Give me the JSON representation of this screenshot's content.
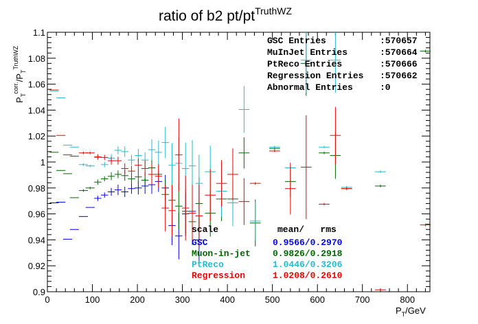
{
  "chart_data": {
    "type": "scatter",
    "title": "ratio of b2 pt/pt",
    "title_superscript": "TruthWZ",
    "xlabel": "P",
    "xlabel_sub": "T",
    "xlabel_unit": "/GeV",
    "ylabel": {
      "p1": "P",
      "p1_sub": "T",
      "p1_sup": "corr.",
      "slash": "/P",
      "p2_sub": "T",
      "p2_sup": "TruthWZ"
    },
    "xlim": [
      0,
      850
    ],
    "ylim": [
      0.9,
      1.1
    ],
    "x_ticks": [
      0,
      100,
      200,
      300,
      400,
      500,
      600,
      700,
      800
    ],
    "y_ticks": [
      0.9,
      0.92,
      0.94,
      0.96,
      0.98,
      1.0,
      1.02,
      1.04,
      1.06,
      1.08,
      1.1
    ],
    "x_tick_labels": [
      "0",
      "100",
      "200",
      "300",
      "400",
      "500",
      "600",
      "700",
      "800"
    ],
    "y_tick_labels": [
      "0.9",
      "0.92",
      "0.94",
      "0.96",
      "0.98",
      "1",
      "1.02",
      "1.04",
      "1.06",
      "1.08",
      "1.1"
    ],
    "grid": false,
    "stats_box": {
      "rows": [
        {
          "label": "GSC Entries",
          "value": ":570657"
        },
        {
          "label": "MuInJet Entries",
          "value": ":570664"
        },
        {
          "label": "PtReco Entries",
          "value": ":570666"
        },
        {
          "label": "Regression Entries",
          "value": ":570662"
        },
        {
          "label": "Abnormal Entries",
          "value": ":0"
        }
      ]
    },
    "legend": {
      "header_left": "scale",
      "header_right": "mean/   rms",
      "placement": "bottom-center",
      "entries": [
        {
          "name": "GSC",
          "value": "0.9566/0.2970",
          "color": "#0000ee"
        },
        {
          "name": "Muon-in-jet",
          "value": "0.9826/0.2918",
          "color": "#006600"
        },
        {
          "name": "PtReco",
          "value": "1.0446/0.3206",
          "color": "#22bbcc"
        },
        {
          "name": "Regression",
          "value": "1.0208/0.2610",
          "color": "#ee0000"
        }
      ]
    },
    "series": [
      {
        "name": "GSC",
        "color": "#0000ee",
        "points": [
          {
            "x": 15,
            "xerr": 10,
            "y": 0.9685,
            "yerr": 0
          },
          {
            "x": 30,
            "xerr": 10,
            "y": 0.969,
            "yerr": 0
          },
          {
            "x": 45,
            "xerr": 10,
            "y": 0.9405,
            "yerr": 0
          },
          {
            "x": 60,
            "xerr": 10,
            "y": 0.948,
            "yerr": 0
          },
          {
            "x": 80,
            "xerr": 10,
            "y": 0.958,
            "yerr": 0
          },
          {
            "x": 95,
            "xerr": 10,
            "y": 0.965,
            "yerr": 0
          },
          {
            "x": 112,
            "xerr": 8,
            "y": 0.972,
            "yerr": 0.002
          },
          {
            "x": 127,
            "xerr": 8,
            "y": 0.9745,
            "yerr": 0.002
          },
          {
            "x": 142,
            "xerr": 8,
            "y": 0.977,
            "yerr": 0.003
          },
          {
            "x": 157,
            "xerr": 8,
            "y": 0.9785,
            "yerr": 0.004
          },
          {
            "x": 172,
            "xerr": 8,
            "y": 0.977,
            "yerr": 0.004
          },
          {
            "x": 187,
            "xerr": 8,
            "y": 0.9795,
            "yerr": 0.004
          },
          {
            "x": 202,
            "xerr": 8,
            "y": 0.98,
            "yerr": 0.005
          },
          {
            "x": 217,
            "xerr": 8,
            "y": 0.9815,
            "yerr": 0.006
          },
          {
            "x": 232,
            "xerr": 8,
            "y": 0.9825,
            "yerr": 0.007
          },
          {
            "x": 247,
            "xerr": 8,
            "y": 0.985,
            "yerr": 0.008
          },
          {
            "x": 262,
            "xerr": 8,
            "y": 0.98,
            "yerr": 0.01
          },
          {
            "x": 277,
            "xerr": 8,
            "y": 0.951,
            "yerr": 0.015
          },
          {
            "x": 292,
            "xerr": 8,
            "y": 0.943,
            "yerr": 0.018
          },
          {
            "x": 307,
            "xerr": 8,
            "y": 0.96,
            "yerr": 0.017
          },
          {
            "x": 322,
            "xerr": 8,
            "y": 0.962,
            "yerr": 0.019
          },
          {
            "x": 337,
            "xerr": 8,
            "y": 0.94,
            "yerr": 0.017
          }
        ]
      },
      {
        "name": "Muon-in-jet",
        "color": "#006600",
        "points": [
          {
            "x": 15,
            "xerr": 10,
            "y": 1.0075,
            "yerr": 0
          },
          {
            "x": 30,
            "xerr": 10,
            "y": 0.9935,
            "yerr": 0
          },
          {
            "x": 45,
            "xerr": 10,
            "y": 0.991,
            "yerr": 0
          },
          {
            "x": 60,
            "xerr": 10,
            "y": 0.9725,
            "yerr": 0
          },
          {
            "x": 80,
            "xerr": 10,
            "y": 0.978,
            "yerr": 0.001
          },
          {
            "x": 95,
            "xerr": 10,
            "y": 0.98,
            "yerr": 0.001
          },
          {
            "x": 112,
            "xerr": 8,
            "y": 0.9845,
            "yerr": 0.002
          },
          {
            "x": 127,
            "xerr": 8,
            "y": 0.987,
            "yerr": 0.002
          },
          {
            "x": 142,
            "xerr": 8,
            "y": 0.989,
            "yerr": 0.003
          },
          {
            "x": 157,
            "xerr": 8,
            "y": 0.9905,
            "yerr": 0.003
          },
          {
            "x": 172,
            "xerr": 8,
            "y": 0.9895,
            "yerr": 0.004
          },
          {
            "x": 187,
            "xerr": 8,
            "y": 0.987,
            "yerr": 0.004
          },
          {
            "x": 202,
            "xerr": 8,
            "y": 0.9885,
            "yerr": 0.005
          },
          {
            "x": 217,
            "xerr": 8,
            "y": 0.986,
            "yerr": 0.006
          },
          {
            "x": 232,
            "xerr": 8,
            "y": 0.9955,
            "yerr": 0.007
          },
          {
            "x": 247,
            "xerr": 8,
            "y": 0.9905,
            "yerr": 0.008
          },
          {
            "x": 262,
            "xerr": 8,
            "y": 0.975,
            "yerr": 0.012
          },
          {
            "x": 277,
            "xerr": 8,
            "y": 0.9705,
            "yerr": 0.015
          },
          {
            "x": 292,
            "xerr": 8,
            "y": 0.966,
            "yerr": 0.018
          },
          {
            "x": 307,
            "xerr": 8,
            "y": 0.962,
            "yerr": 0.017
          },
          {
            "x": 322,
            "xerr": 8,
            "y": 0.954,
            "yerr": 0.018
          },
          {
            "x": 337,
            "xerr": 8,
            "y": 0.968,
            "yerr": 0.02
          },
          {
            "x": 362,
            "xerr": 12,
            "y": 0.9605,
            "yerr": 0.018
          },
          {
            "x": 387,
            "xerr": 12,
            "y": 0.9715,
            "yerr": 0.017
          },
          {
            "x": 412,
            "xerr": 12,
            "y": 0.9715,
            "yerr": 0.015
          },
          {
            "x": 437,
            "xerr": 12,
            "y": 1.007,
            "yerr": 0.012
          },
          {
            "x": 462,
            "xerr": 12,
            "y": 0.953,
            "yerr": 0.018
          },
          {
            "x": 505,
            "xerr": 12,
            "y": 1.0105,
            "yerr": 0.001
          },
          {
            "x": 540,
            "xerr": 12,
            "y": 0.985,
            "yerr": 0.012
          },
          {
            "x": 575,
            "xerr": 12,
            "y": 1.076,
            "yerr": 0.025
          },
          {
            "x": 615,
            "xerr": 12,
            "y": 1.007,
            "yerr": 0.001
          },
          {
            "x": 640,
            "xerr": 12,
            "y": 1.005,
            "yerr": 0.018
          },
          {
            "x": 665,
            "xerr": 12,
            "y": 0.9795,
            "yerr": 0.001
          },
          {
            "x": 740,
            "xerr": 12,
            "y": 0.9815,
            "yerr": 0.001
          },
          {
            "x": 840,
            "xerr": 12,
            "y": 1.0855,
            "yerr": 0.001
          }
        ]
      },
      {
        "name": "PtReco",
        "color": "#22bbcc",
        "points": [
          {
            "x": 15,
            "xerr": 10,
            "y": 1.0545,
            "yerr": 0
          },
          {
            "x": 30,
            "xerr": 10,
            "y": 1.0495,
            "yerr": 0
          },
          {
            "x": 45,
            "xerr": 10,
            "y": 1.013,
            "yerr": 0
          },
          {
            "x": 60,
            "xerr": 10,
            "y": 1.0115,
            "yerr": 0
          },
          {
            "x": 80,
            "xerr": 10,
            "y": 0.998,
            "yerr": 0.001
          },
          {
            "x": 95,
            "xerr": 10,
            "y": 0.997,
            "yerr": 0.001
          },
          {
            "x": 112,
            "xerr": 8,
            "y": 1.0035,
            "yerr": 0.002
          },
          {
            "x": 127,
            "xerr": 8,
            "y": 0.998,
            "yerr": 0.002
          },
          {
            "x": 142,
            "xerr": 8,
            "y": 1.003,
            "yerr": 0.003
          },
          {
            "x": 157,
            "xerr": 8,
            "y": 1.009,
            "yerr": 0.003
          },
          {
            "x": 172,
            "xerr": 8,
            "y": 1.008,
            "yerr": 0.004
          },
          {
            "x": 187,
            "xerr": 8,
            "y": 1.0015,
            "yerr": 0.004
          },
          {
            "x": 202,
            "xerr": 8,
            "y": 1.005,
            "yerr": 0.005
          },
          {
            "x": 217,
            "xerr": 8,
            "y": 1.0015,
            "yerr": 0.006
          },
          {
            "x": 232,
            "xerr": 8,
            "y": 1.0095,
            "yerr": 0.008
          },
          {
            "x": 247,
            "xerr": 8,
            "y": 1.0075,
            "yerr": 0.009
          },
          {
            "x": 262,
            "xerr": 8,
            "y": 1.015,
            "yerr": 0.012
          },
          {
            "x": 277,
            "xerr": 8,
            "y": 0.9975,
            "yerr": 0.017
          },
          {
            "x": 292,
            "xerr": 8,
            "y": 0.999,
            "yerr": 0.02
          },
          {
            "x": 307,
            "xerr": 8,
            "y": 0.995,
            "yerr": 0.02
          },
          {
            "x": 322,
            "xerr": 8,
            "y": 0.997,
            "yerr": 0.02
          },
          {
            "x": 337,
            "xerr": 8,
            "y": 0.9835,
            "yerr": 0.022
          },
          {
            "x": 362,
            "xerr": 12,
            "y": 0.9925,
            "yerr": 0.02
          },
          {
            "x": 387,
            "xerr": 12,
            "y": 0.9775,
            "yerr": 0.02
          },
          {
            "x": 412,
            "xerr": 12,
            "y": 0.9685,
            "yerr": 0.018
          },
          {
            "x": 437,
            "xerr": 12,
            "y": 1.0405,
            "yerr": 0.018
          },
          {
            "x": 462,
            "xerr": 12,
            "y": 0.9545,
            "yerr": 0.015
          },
          {
            "x": 505,
            "xerr": 12,
            "y": 1.0115,
            "yerr": 0.001
          },
          {
            "x": 540,
            "xerr": 12,
            "y": 0.9955,
            "yerr": 0.001
          },
          {
            "x": 575,
            "xerr": 12,
            "y": 1.0785,
            "yerr": 0.025
          },
          {
            "x": 615,
            "xerr": 12,
            "y": 1.0115,
            "yerr": 0.001
          },
          {
            "x": 640,
            "xerr": 12,
            "y": 1.0785,
            "yerr": 0.025
          },
          {
            "x": 665,
            "xerr": 12,
            "y": 0.9805,
            "yerr": 0.001
          },
          {
            "x": 740,
            "xerr": 12,
            "y": 0.9925,
            "yerr": 0.001
          }
        ]
      },
      {
        "name": "Regression",
        "color": "#ee0000",
        "points": [
          {
            "x": 15,
            "xerr": 10,
            "y": 1.0555,
            "yerr": 0
          },
          {
            "x": 30,
            "xerr": 10,
            "y": 1.0205,
            "yerr": 0
          },
          {
            "x": 45,
            "xerr": 10,
            "y": 1.0055,
            "yerr": 0
          },
          {
            "x": 60,
            "xerr": 10,
            "y": 1.0045,
            "yerr": 0
          },
          {
            "x": 80,
            "xerr": 10,
            "y": 1.007,
            "yerr": 0.001
          },
          {
            "x": 95,
            "xerr": 10,
            "y": 1.007,
            "yerr": 0.001
          },
          {
            "x": 112,
            "xerr": 8,
            "y": 1.004,
            "yerr": 0.002
          },
          {
            "x": 127,
            "xerr": 8,
            "y": 1.0035,
            "yerr": 0.002
          },
          {
            "x": 142,
            "xerr": 8,
            "y": 1.001,
            "yerr": 0.003
          },
          {
            "x": 157,
            "xerr": 8,
            "y": 1.001,
            "yerr": 0.003
          },
          {
            "x": 172,
            "xerr": 8,
            "y": 0.995,
            "yerr": 0.004
          },
          {
            "x": 187,
            "xerr": 8,
            "y": 0.993,
            "yerr": 0.004
          },
          {
            "x": 202,
            "xerr": 8,
            "y": 0.9975,
            "yerr": 0.005
          },
          {
            "x": 217,
            "xerr": 8,
            "y": 0.995,
            "yerr": 0.006
          },
          {
            "x": 232,
            "xerr": 8,
            "y": 0.9905,
            "yerr": 0.008
          },
          {
            "x": 247,
            "xerr": 8,
            "y": 0.989,
            "yerr": 0.009
          },
          {
            "x": 262,
            "xerr": 8,
            "y": 0.9645,
            "yerr": 0.018
          },
          {
            "x": 277,
            "xerr": 8,
            "y": 0.9625,
            "yerr": 0.02
          },
          {
            "x": 292,
            "xerr": 8,
            "y": 1.0055,
            "yerr": 0.028
          },
          {
            "x": 307,
            "xerr": 8,
            "y": 0.9645,
            "yerr": 0.025
          },
          {
            "x": 322,
            "xerr": 8,
            "y": 0.9605,
            "yerr": 0.022
          },
          {
            "x": 337,
            "xerr": 8,
            "y": 0.9585,
            "yerr": 0.024
          },
          {
            "x": 362,
            "xerr": 12,
            "y": 0.9745,
            "yerr": 0.02
          },
          {
            "x": 387,
            "xerr": 12,
            "y": 0.9835,
            "yerr": 0.018
          },
          {
            "x": 412,
            "xerr": 12,
            "y": 0.9905,
            "yerr": 0.02
          },
          {
            "x": 437,
            "xerr": 12,
            "y": 0.9695,
            "yerr": 0.018
          },
          {
            "x": 462,
            "xerr": 12,
            "y": 0.9835,
            "yerr": 0.001
          },
          {
            "x": 505,
            "xerr": 12,
            "y": 1.0085,
            "yerr": 0.001
          },
          {
            "x": 540,
            "xerr": 12,
            "y": 0.9795,
            "yerr": 0.02
          },
          {
            "x": 575,
            "xerr": 12,
            "y": 0.996,
            "yerr": 0.04
          },
          {
            "x": 615,
            "xerr": 12,
            "y": 0.9675,
            "yerr": 0.001
          },
          {
            "x": 640,
            "xerr": 12,
            "y": 1.0205,
            "yerr": 0.022
          },
          {
            "x": 665,
            "xerr": 12,
            "y": 0.9795,
            "yerr": 0.001
          },
          {
            "x": 740,
            "xerr": 12,
            "y": 0.9015,
            "yerr": 0.001
          },
          {
            "x": 840,
            "xerr": 12,
            "y": 0.9515,
            "yerr": 0.001
          }
        ]
      }
    ]
  }
}
